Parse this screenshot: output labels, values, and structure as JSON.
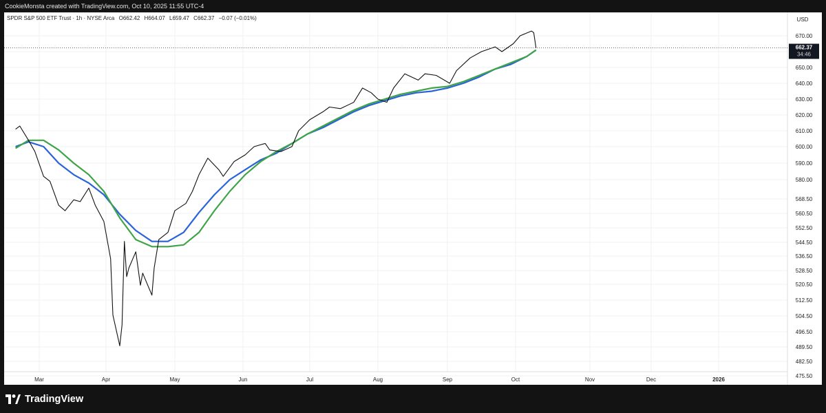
{
  "header": {
    "created_text": "CookieMonsta created with TradingView.com, Oct 10, 2025 11:55 UTC-4"
  },
  "chart_info": {
    "symbol_line": "SPDR S&P 500 ETF Trust · 1h · NYSE Arca",
    "open": "O662.42",
    "high": "H664.07",
    "low": "L659.47",
    "close": "C662.37",
    "change": "−0.07 (−0.01%)"
  },
  "brand": {
    "name": "TradingView",
    "icon": "tradingview-logo-icon"
  },
  "colors": {
    "background": "#131313",
    "price": "#111111",
    "ma_blue": "#2a62d9",
    "ma_green": "#3ea447",
    "axis_text": "#222222",
    "price_label_bg": "#131722"
  },
  "chart_data": {
    "type": "line",
    "currency_label": "USD",
    "x_axis_labels": [
      "Mar",
      "Apr",
      "May",
      "Jun",
      "Jul",
      "Aug",
      "Sep",
      "Oct",
      "Nov",
      "Dec",
      "2026"
    ],
    "y_ticks": [
      475.5,
      482.5,
      489.5,
      496.5,
      504.5,
      512.5,
      520.5,
      528.5,
      536.5,
      544.5,
      552.5,
      560.5,
      568.5,
      580.0,
      590.0,
      600.0,
      610.0,
      620.0,
      630.0,
      640.0,
      650.0,
      660.0,
      670.0
    ],
    "y_tick_labels": [
      "475.50",
      "482.50",
      "489.50",
      "496.50",
      "504.50",
      "512.50",
      "520.50",
      "528.50",
      "536.50",
      "544.50",
      "552.50",
      "560.50",
      "568.50",
      "580.00",
      "590.00",
      "600.00",
      "610.00",
      "620.00",
      "630.00",
      "640.00",
      "650.00",
      "660.00",
      "670.00"
    ],
    "current_price": {
      "value": 662.37,
      "label": "662.37",
      "countdown": "34:46"
    },
    "scale": "non-linear (compressed below 570)",
    "series": [
      {
        "role": "price",
        "x": [
          "2025-02-18",
          "2025-02-20",
          "2025-02-24",
          "2025-02-27",
          "2025-03-03",
          "2025-03-06",
          "2025-03-10",
          "2025-03-13",
          "2025-03-17",
          "2025-03-20",
          "2025-03-24",
          "2025-03-27",
          "2025-03-31",
          "2025-04-03",
          "2025-04-04",
          "2025-04-07",
          "2025-04-08",
          "2025-04-09",
          "2025-04-10",
          "2025-04-11",
          "2025-04-14",
          "2025-04-16",
          "2025-04-17",
          "2025-04-21",
          "2025-04-22",
          "2025-04-24",
          "2025-04-28",
          "2025-05-01",
          "2025-05-06",
          "2025-05-09",
          "2025-05-12",
          "2025-05-16",
          "2025-05-21",
          "2025-05-23",
          "2025-05-28",
          "2025-06-02",
          "2025-06-06",
          "2025-06-11",
          "2025-06-13",
          "2025-06-18",
          "2025-06-23",
          "2025-06-26",
          "2025-07-01",
          "2025-07-07",
          "2025-07-10",
          "2025-07-15",
          "2025-07-21",
          "2025-07-25",
          "2025-07-29",
          "2025-08-01",
          "2025-08-05",
          "2025-08-08",
          "2025-08-13",
          "2025-08-19",
          "2025-08-22",
          "2025-08-27",
          "2025-09-02",
          "2025-09-05",
          "2025-09-11",
          "2025-09-16",
          "2025-09-22",
          "2025-09-25",
          "2025-09-30",
          "2025-10-03",
          "2025-10-08",
          "2025-10-09",
          "2025-10-10"
        ],
        "values": [
          611,
          613,
          604,
          597,
          582,
          579,
          565,
          562,
          568,
          567,
          575,
          565,
          556,
          535,
          505,
          490,
          500,
          545,
          525,
          530,
          539,
          520,
          527,
          515,
          530,
          546,
          550,
          562,
          566,
          573,
          583,
          593,
          586,
          582,
          591,
          595,
          600,
          602,
          598,
          597,
          600,
          610,
          617,
          622,
          625,
          624,
          628,
          637,
          634,
          630,
          628,
          637,
          646,
          642,
          646,
          645,
          640,
          648,
          656,
          660,
          663,
          660,
          665,
          670,
          673,
          672,
          662.37
        ]
      },
      {
        "role": "moving-average-blue",
        "x": [
          "2025-02-18",
          "2025-02-24",
          "2025-03-03",
          "2025-03-10",
          "2025-03-17",
          "2025-03-24",
          "2025-03-31",
          "2025-04-07",
          "2025-04-14",
          "2025-04-21",
          "2025-04-28",
          "2025-05-05",
          "2025-05-12",
          "2025-05-19",
          "2025-05-26",
          "2025-06-02",
          "2025-06-09",
          "2025-06-16",
          "2025-06-23",
          "2025-06-30",
          "2025-07-07",
          "2025-07-14",
          "2025-07-21",
          "2025-07-28",
          "2025-08-04",
          "2025-08-11",
          "2025-08-18",
          "2025-08-25",
          "2025-09-01",
          "2025-09-08",
          "2025-09-15",
          "2025-09-22",
          "2025-09-29",
          "2025-10-06",
          "2025-10-10"
        ],
        "values": [
          600,
          603,
          600,
          590,
          583,
          578,
          571,
          560,
          551,
          545,
          545,
          550,
          561,
          571,
          580,
          586,
          592,
          596,
          602,
          608,
          612,
          617,
          622,
          626,
          629,
          632,
          634,
          635,
          637,
          640,
          644,
          649,
          652,
          657,
          661
        ]
      },
      {
        "role": "moving-average-green",
        "x": [
          "2025-02-18",
          "2025-02-24",
          "2025-03-03",
          "2025-03-10",
          "2025-03-17",
          "2025-03-24",
          "2025-03-31",
          "2025-04-07",
          "2025-04-14",
          "2025-04-21",
          "2025-04-28",
          "2025-05-05",
          "2025-05-12",
          "2025-05-19",
          "2025-05-26",
          "2025-06-02",
          "2025-06-09",
          "2025-06-16",
          "2025-06-23",
          "2025-06-30",
          "2025-07-07",
          "2025-07-14",
          "2025-07-21",
          "2025-07-28",
          "2025-08-04",
          "2025-08-11",
          "2025-08-18",
          "2025-08-25",
          "2025-09-01",
          "2025-09-08",
          "2025-09-15",
          "2025-09-22",
          "2025-09-29",
          "2025-10-06",
          "2025-10-10"
        ],
        "values": [
          599,
          604,
          604,
          598,
          590,
          583,
          573,
          558,
          546,
          542,
          542,
          543,
          550,
          562,
          573,
          583,
          591,
          597,
          602,
          608,
          613,
          618,
          623,
          627,
          630,
          633,
          635,
          637,
          638,
          641,
          645,
          649,
          653,
          657,
          661
        ]
      }
    ]
  }
}
